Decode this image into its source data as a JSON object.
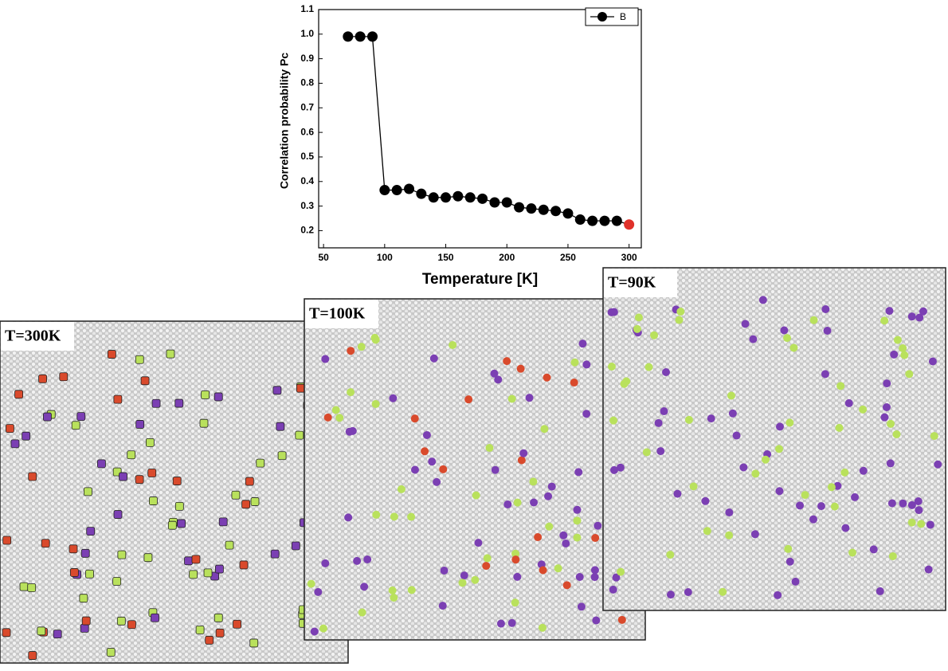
{
  "chart_data": {
    "type": "line",
    "xlabel": "Temperature [K]",
    "ylabel": "Correlation probability Pc",
    "x": [
      70,
      80,
      90,
      100,
      110,
      120,
      130,
      140,
      150,
      160,
      170,
      180,
      190,
      200,
      210,
      220,
      230,
      240,
      250,
      260,
      270,
      280,
      290,
      300
    ],
    "series": [
      {
        "name": "B",
        "color": "#000000",
        "values": [
          0.99,
          0.99,
          0.99,
          0.365,
          0.365,
          0.37,
          0.35,
          0.335,
          0.335,
          0.34,
          0.335,
          0.33,
          0.315,
          0.315,
          0.295,
          0.29,
          0.285,
          0.28,
          0.27,
          0.245,
          0.24,
          0.24,
          0.24,
          0.225
        ],
        "marker_colors": [
          "#000000",
          "#000000",
          "#000000",
          "#000000",
          "#000000",
          "#000000",
          "#000000",
          "#000000",
          "#000000",
          "#000000",
          "#000000",
          "#000000",
          "#000000",
          "#000000",
          "#000000",
          "#000000",
          "#000000",
          "#000000",
          "#000000",
          "#000000",
          "#000000",
          "#000000",
          "#000000",
          "#e0312a"
        ]
      }
    ],
    "xlim": [
      46,
      310
    ],
    "ylim": [
      0.13,
      1.1
    ],
    "xticks": [
      50,
      100,
      150,
      200,
      250,
      300
    ],
    "yticks": [
      0.2,
      0.3,
      0.4,
      0.5,
      0.6,
      0.7,
      0.8,
      0.9,
      {
        "value": 1,
        "label": "1.0"
      },
      1.1
    ],
    "legend": "upper right"
  },
  "panels": [
    {
      "label": "T=300K"
    },
    {
      "label": "T=100K"
    },
    {
      "label": "T=90K"
    }
  ]
}
